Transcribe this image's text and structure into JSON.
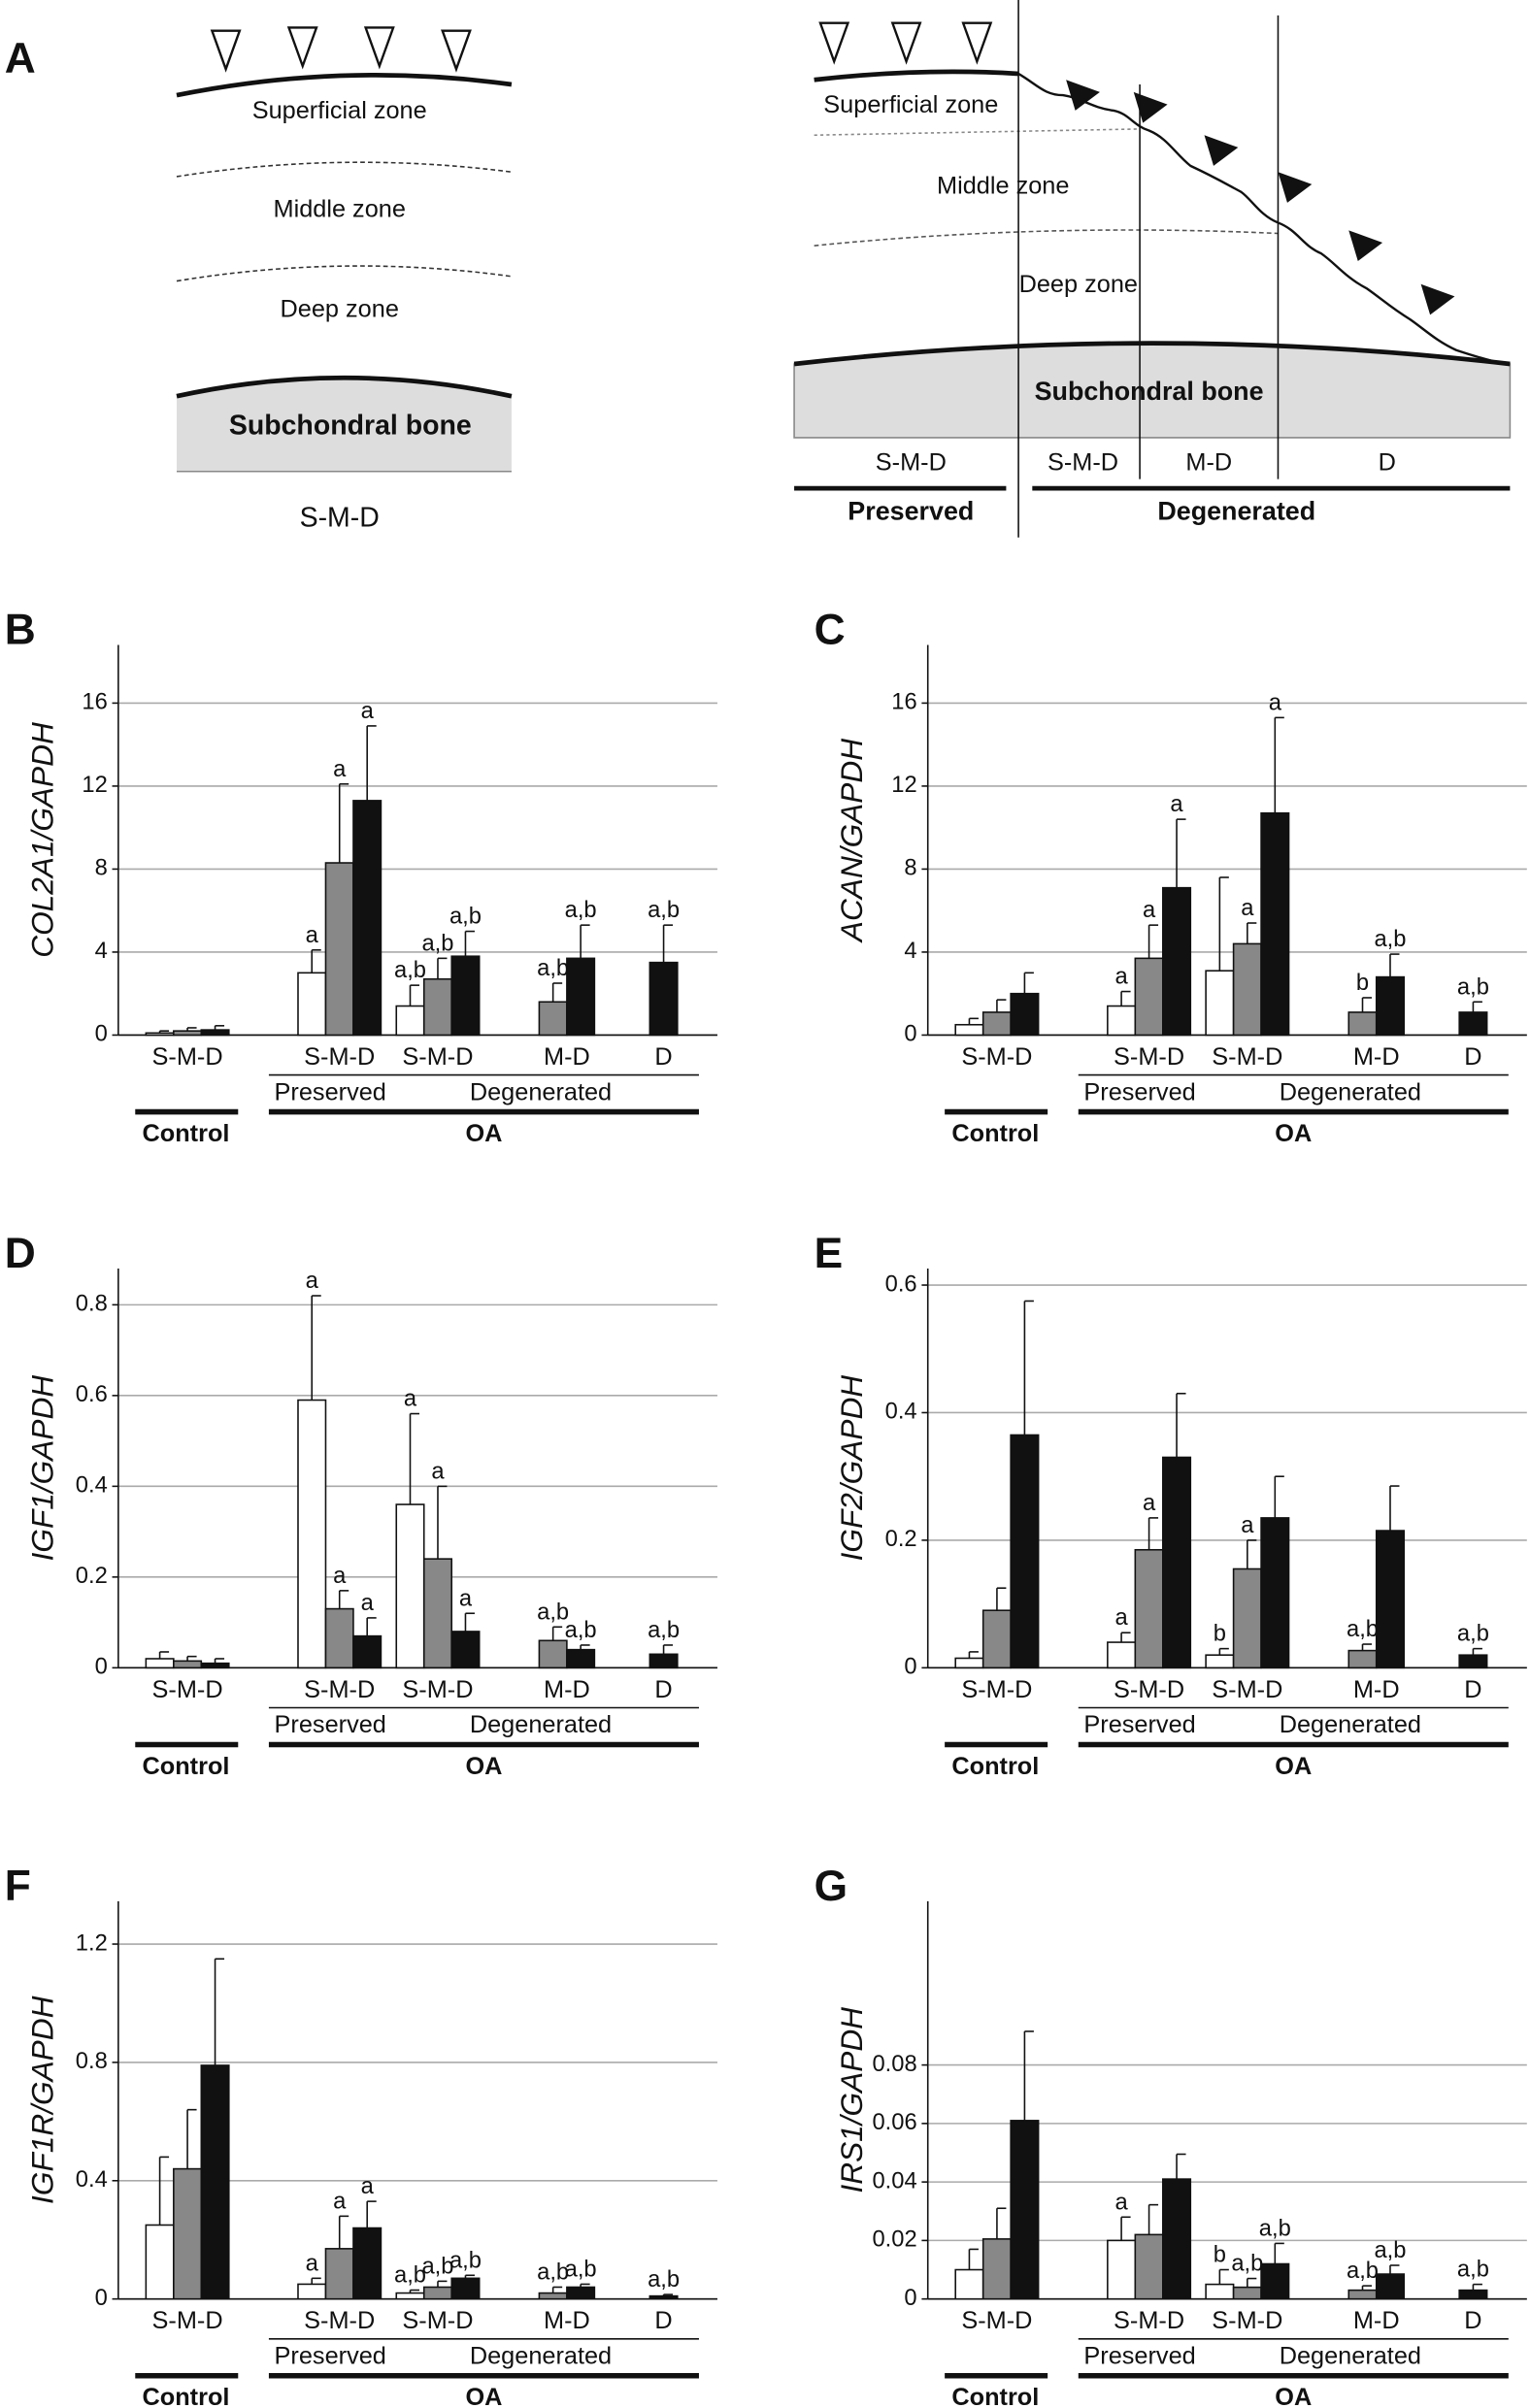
{
  "diagram": {
    "panel": "A",
    "left": {
      "zones": [
        "Superficial zone",
        "Middle zone",
        "Deep zone"
      ],
      "bone": "Subchondral bone",
      "region": "S-M-D"
    },
    "right": {
      "zones": [
        "Superficial zone",
        "Middle zone",
        "Deep zone"
      ],
      "bone": "Subchondral bone",
      "regions": [
        "S-M-D",
        "S-M-D",
        "M-D",
        "D"
      ],
      "groups": [
        "Preserved",
        "Degenerated"
      ]
    }
  },
  "chart_data": [
    {
      "type": "bar",
      "panel": "B",
      "ylabel": "COL2A1/GAPDH",
      "categories": [
        "S-M-D",
        "S-M-D",
        "S-M-D",
        "M-D",
        "D"
      ],
      "subgroups": [
        "Preserved",
        "Degenerated"
      ],
      "groups": [
        "Control",
        "OA"
      ],
      "ylim": [
        0,
        18.8
      ],
      "yticks": [
        0,
        4,
        8,
        12,
        16
      ],
      "grid": true,
      "series": [
        {
          "color": "#ffffff",
          "values": [
            0.1,
            3.0,
            1.4,
            null,
            null
          ],
          "errors": [
            0.1,
            1.1,
            1.0,
            null,
            null
          ],
          "annotations": [
            null,
            "a",
            "a,b",
            null,
            null
          ]
        },
        {
          "color": "#888888",
          "values": [
            0.2,
            8.3,
            2.7,
            1.6,
            null
          ],
          "errors": [
            0.15,
            3.8,
            1.0,
            0.9,
            null
          ],
          "annotations": [
            null,
            "a",
            "a,b",
            "a,b",
            null
          ]
        },
        {
          "color": "#111111",
          "values": [
            0.25,
            11.3,
            3.8,
            3.7,
            3.5
          ],
          "errors": [
            0.2,
            3.6,
            1.2,
            1.6,
            1.8
          ],
          "annotations": [
            null,
            "a",
            "a,b",
            "a,b",
            "a,b"
          ]
        }
      ]
    },
    {
      "type": "bar",
      "panel": "C",
      "ylabel": "ACAN/GAPDH",
      "categories": [
        "S-M-D",
        "S-M-D",
        "S-M-D",
        "M-D",
        "D"
      ],
      "subgroups": [
        "Preserved",
        "Degenerated"
      ],
      "groups": [
        "Control",
        "OA"
      ],
      "ylim": [
        0,
        18.8
      ],
      "yticks": [
        0,
        4,
        8,
        12,
        16
      ],
      "grid": true,
      "series": [
        {
          "color": "#ffffff",
          "values": [
            0.5,
            1.4,
            3.1,
            null,
            null
          ],
          "errors": [
            0.3,
            0.7,
            4.5,
            null,
            null
          ],
          "annotations": [
            null,
            "a",
            null,
            null,
            null
          ]
        },
        {
          "color": "#888888",
          "values": [
            1.1,
            3.7,
            4.4,
            1.1,
            null
          ],
          "errors": [
            0.6,
            1.6,
            1.0,
            0.7,
            null
          ],
          "annotations": [
            null,
            "a",
            "a",
            "b",
            null
          ]
        },
        {
          "color": "#111111",
          "values": [
            2.0,
            7.1,
            10.7,
            2.8,
            1.1
          ],
          "errors": [
            1.0,
            3.3,
            4.6,
            1.1,
            0.5
          ],
          "annotations": [
            null,
            "a",
            "a",
            "a,b",
            "a,b"
          ]
        }
      ]
    },
    {
      "type": "bar",
      "panel": "D",
      "ylabel": "IGF1/GAPDH",
      "categories": [
        "S-M-D",
        "S-M-D",
        "S-M-D",
        "M-D",
        "D"
      ],
      "subgroups": [
        "Preserved",
        "Degenerated"
      ],
      "groups": [
        "Control",
        "OA"
      ],
      "ylim": [
        0,
        0.88
      ],
      "yticks": [
        0,
        0.2,
        0.4,
        0.6,
        0.8
      ],
      "grid": true,
      "series": [
        {
          "color": "#ffffff",
          "values": [
            0.02,
            0.59,
            0.36,
            null,
            null
          ],
          "errors": [
            0.015,
            0.23,
            0.2,
            null,
            null
          ],
          "annotations": [
            null,
            "a",
            "a",
            null,
            null
          ]
        },
        {
          "color": "#888888",
          "values": [
            0.015,
            0.13,
            0.24,
            0.06,
            null
          ],
          "errors": [
            0.01,
            0.04,
            0.16,
            0.03,
            null
          ],
          "annotations": [
            null,
            "a",
            "a",
            "a,b",
            null
          ]
        },
        {
          "color": "#111111",
          "values": [
            0.01,
            0.07,
            0.08,
            0.04,
            0.03
          ],
          "errors": [
            0.01,
            0.04,
            0.04,
            0.01,
            0.02
          ],
          "annotations": [
            null,
            "a",
            "a",
            "a,b",
            "a,b"
          ]
        }
      ]
    },
    {
      "type": "bar",
      "panel": "E",
      "ylabel": "IGF2/GAPDH",
      "categories": [
        "S-M-D",
        "S-M-D",
        "S-M-D",
        "M-D",
        "D"
      ],
      "subgroups": [
        "Preserved",
        "Degenerated"
      ],
      "groups": [
        "Control",
        "OA"
      ],
      "ylim": [
        0,
        0.626
      ],
      "yticks": [
        0,
        0.2,
        0.4,
        0.6
      ],
      "grid": true,
      "series": [
        {
          "color": "#ffffff",
          "values": [
            0.015,
            0.04,
            0.02,
            null,
            null
          ],
          "errors": [
            0.01,
            0.015,
            0.01,
            null,
            null
          ],
          "annotations": [
            null,
            "a",
            "b",
            null,
            null
          ]
        },
        {
          "color": "#888888",
          "values": [
            0.09,
            0.185,
            0.155,
            0.027,
            null
          ],
          "errors": [
            0.035,
            0.05,
            0.045,
            0.01,
            null
          ],
          "annotations": [
            null,
            "a",
            "a",
            "a,b",
            null
          ]
        },
        {
          "color": "#111111",
          "values": [
            0.365,
            0.33,
            0.235,
            0.215,
            0.02
          ],
          "errors": [
            0.21,
            0.1,
            0.065,
            0.07,
            0.01
          ],
          "annotations": [
            null,
            null,
            null,
            null,
            "a,b"
          ]
        }
      ]
    },
    {
      "type": "bar",
      "panel": "F",
      "ylabel": "IGF1R/GAPDH",
      "categories": [
        "S-M-D",
        "S-M-D",
        "S-M-D",
        "M-D",
        "D"
      ],
      "subgroups": [
        "Preserved",
        "Degenerated"
      ],
      "groups": [
        "Control",
        "OA"
      ],
      "ylim": [
        0,
        1.345
      ],
      "yticks": [
        0,
        0.4,
        0.8,
        1.2
      ],
      "grid": true,
      "series": [
        {
          "color": "#ffffff",
          "values": [
            0.25,
            0.05,
            0.02,
            null,
            null
          ],
          "errors": [
            0.23,
            0.02,
            0.01,
            null,
            null
          ],
          "annotations": [
            null,
            "a",
            "a,b",
            null,
            null
          ]
        },
        {
          "color": "#888888",
          "values": [
            0.44,
            0.17,
            0.04,
            0.02,
            null
          ],
          "errors": [
            0.2,
            0.11,
            0.02,
            0.02,
            null
          ],
          "annotations": [
            null,
            "a",
            "a,b",
            "a,b",
            null
          ]
        },
        {
          "color": "#111111",
          "values": [
            0.79,
            0.24,
            0.07,
            0.04,
            0.01
          ],
          "errors": [
            0.36,
            0.09,
            0.01,
            0.01,
            0.005
          ],
          "annotations": [
            null,
            "a",
            "a,b",
            "a,b",
            "a,b"
          ]
        }
      ]
    },
    {
      "type": "bar",
      "panel": "G",
      "ylabel": "IRS1/GAPDH",
      "categories": [
        "S-M-D",
        "S-M-D",
        "S-M-D",
        "M-D",
        "D"
      ],
      "subgroups": [
        "Preserved",
        "Degenerated"
      ],
      "groups": [
        "Control",
        "OA"
      ],
      "ylim": [
        0,
        0.136
      ],
      "yticks": [
        0,
        0.02,
        0.04,
        0.06,
        0.08
      ],
      "grid": true,
      "series": [
        {
          "color": "#ffffff",
          "values": [
            0.01,
            0.02,
            0.005,
            null,
            null
          ],
          "errors": [
            0.007,
            0.008,
            0.005,
            null,
            null
          ],
          "annotations": [
            null,
            "a",
            "b",
            null,
            null
          ]
        },
        {
          "color": "#888888",
          "values": [
            0.0205,
            0.022,
            0.004,
            0.003,
            null
          ],
          "errors": [
            0.0105,
            0.0102,
            0.003,
            0.0015,
            null
          ],
          "annotations": [
            null,
            null,
            "a,b",
            "a,b",
            null
          ]
        },
        {
          "color": "#111111",
          "values": [
            0.061,
            0.041,
            0.012,
            0.0085,
            0.003
          ],
          "errors": [
            0.0305,
            0.0085,
            0.007,
            0.003,
            0.002
          ],
          "annotations": [
            null,
            null,
            "a,b",
            "a,b",
            "a,b"
          ]
        }
      ]
    }
  ]
}
